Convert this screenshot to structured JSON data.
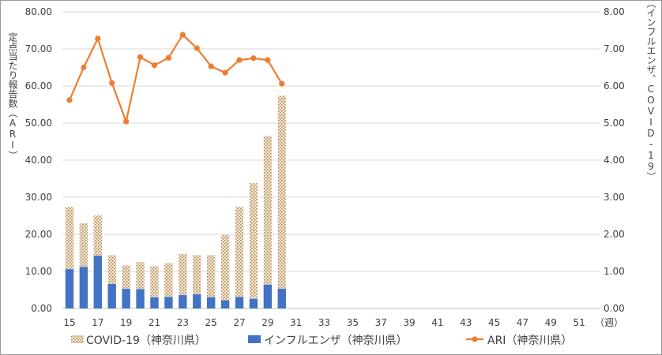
{
  "chart_data": {
    "type": "bar+line",
    "x": [
      15,
      16,
      17,
      18,
      19,
      20,
      21,
      22,
      23,
      24,
      25,
      26,
      27,
      28,
      29,
      30
    ],
    "x_ticks": [
      "15",
      "17",
      "19",
      "21",
      "23",
      "25",
      "27",
      "29",
      "31",
      "33",
      "35",
      "37",
      "39",
      "41",
      "43",
      "45",
      "47",
      "49",
      "51"
    ],
    "x_unit": "（週）",
    "xlim": [
      15,
      52
    ],
    "left_axis": {
      "label": "定点当たり報告数（ARI）",
      "ylim": [
        0,
        80
      ],
      "ticks": [
        "0.00",
        "10.00",
        "20.00",
        "30.00",
        "40.00",
        "50.00",
        "60.00",
        "70.00",
        "80.00"
      ]
    },
    "right_axis": {
      "label": "定点当たり報告数（インフルエンザ、COVID-19）",
      "ylim": [
        0,
        8
      ],
      "ticks": [
        "0.00",
        "1.00",
        "2.00",
        "3.00",
        "4.00",
        "5.00",
        "6.00",
        "7.00",
        "8.00"
      ]
    },
    "series": [
      {
        "name": "COVID-19（神奈川県）",
        "kind": "bar",
        "axis": "right",
        "color": "#d9b98f",
        "values": [
          2.74,
          2.3,
          2.51,
          1.44,
          1.16,
          1.25,
          1.14,
          1.22,
          1.47,
          1.44,
          1.44,
          1.99,
          2.74,
          3.38,
          4.65,
          5.74
        ]
      },
      {
        "name": "インフルエンザ（神奈川県）",
        "kind": "bar",
        "axis": "right",
        "color": "#4472c4",
        "values": [
          1.06,
          1.12,
          1.42,
          0.66,
          0.53,
          0.52,
          0.3,
          0.31,
          0.36,
          0.38,
          0.3,
          0.22,
          0.31,
          0.26,
          0.64,
          0.53
        ]
      },
      {
        "name": "ARI（神奈川県）",
        "kind": "line",
        "axis": "left",
        "color": "#ed7d31",
        "values": [
          56.2,
          65.0,
          72.8,
          60.8,
          50.4,
          67.8,
          65.6,
          67.6,
          73.8,
          70.2,
          65.3,
          63.6,
          67.0,
          67.5,
          67.0,
          60.6
        ]
      }
    ],
    "grid": true,
    "legend_position": "bottom"
  }
}
